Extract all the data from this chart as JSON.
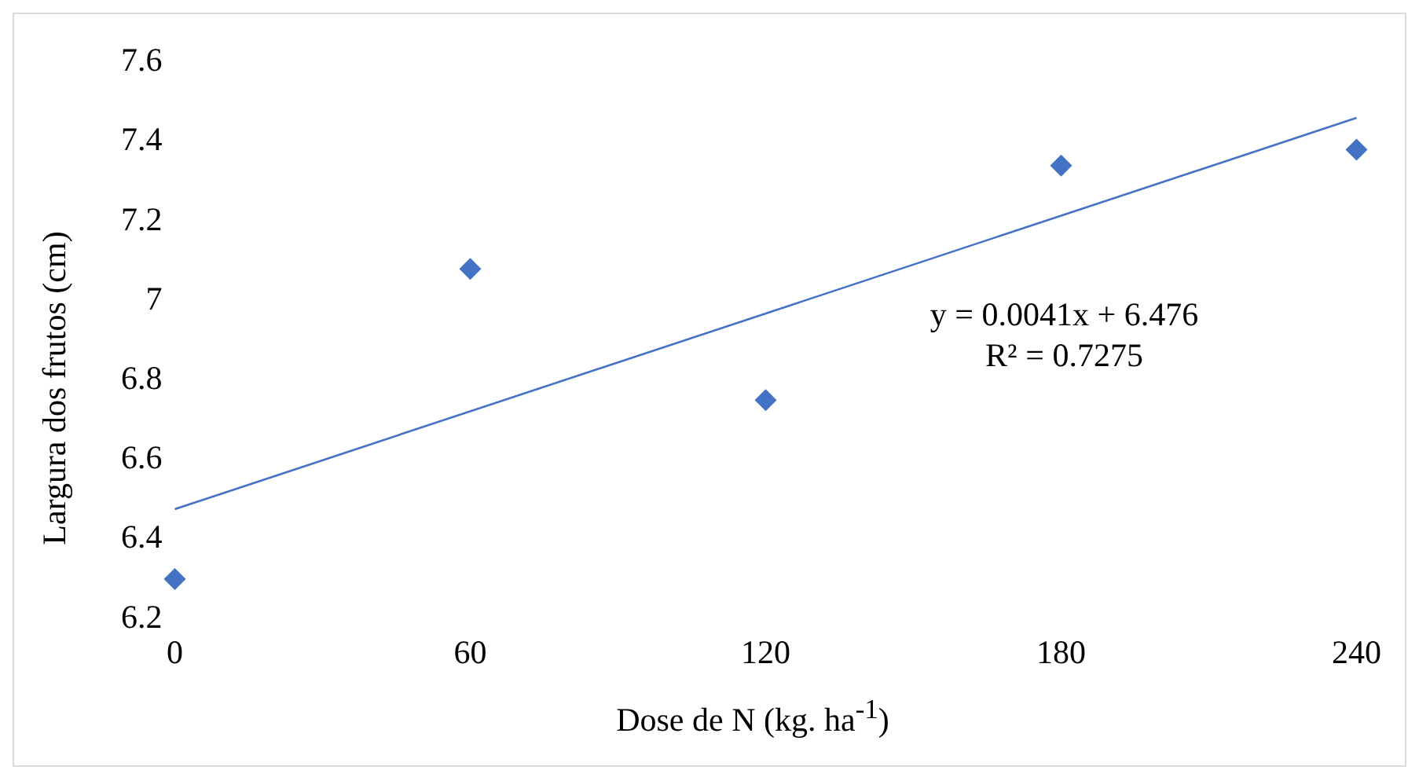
{
  "chart_data": {
    "type": "scatter",
    "xlabel": "Dose de N (kg. ha$^{-1}$)",
    "ylabel": "Largura dos frutos (cm)",
    "x": [
      0,
      60,
      120,
      180,
      240
    ],
    "series": [
      {
        "color": "#4472c4",
        "values": [
          6.3,
          7.08,
          6.75,
          7.34,
          7.38
        ],
        "marker": "diamond"
      },
      {
        "type": "line",
        "color": "#4472c4",
        "x": [
          0,
          240
        ],
        "values": [
          6.476,
          7.46
        ],
        "marker": "none"
      }
    ],
    "annotations": [
      "y = 0.0041x + 6.476",
      "R² = 0.7275"
    ],
    "xlim": [
      0,
      240
    ],
    "xticks": [
      0,
      60,
      120,
      180,
      240
    ],
    "ylim": [
      6.2,
      7.6
    ],
    "yticks": [
      6.2,
      6.4,
      6.6,
      6.8,
      7,
      7.2,
      7.4,
      7.6
    ],
    "grid": false,
    "legend": false
  }
}
